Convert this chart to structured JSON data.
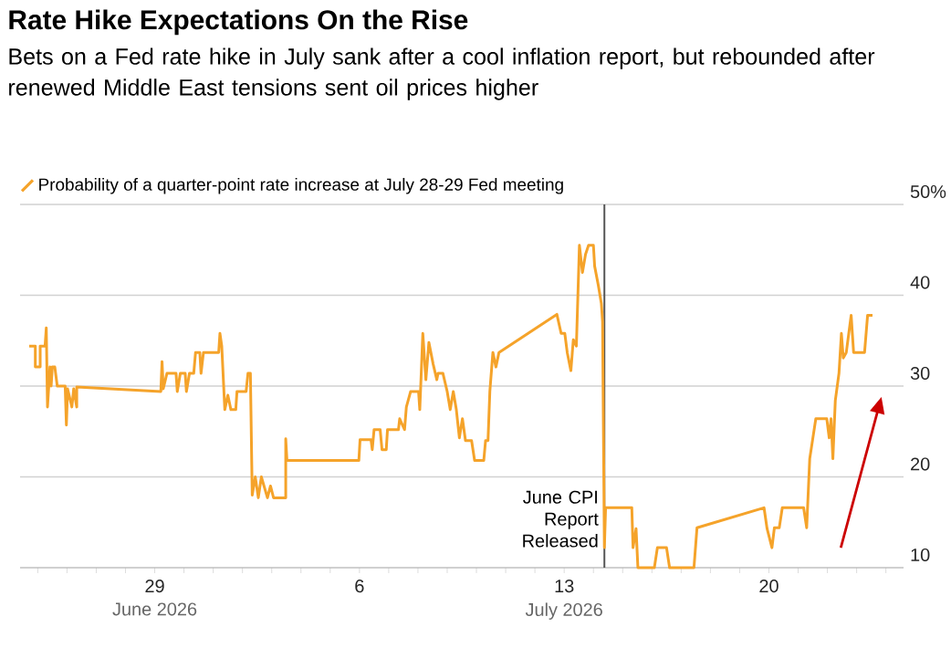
{
  "chart_data": {
    "type": "line",
    "title": "Rate Hike Expectations On the Rise",
    "subtitle": "Bets on a Fed rate hike in July sank after a cool inflation report, but rebounded after renewed Middle East tensions sent oil prices higher",
    "annotations": [
      "June 2026",
      "July 2026"
    ],
    "x": [
      "2026-06-24T17:00",
      "2026-06-24T22:00",
      "2026-06-24T22:00",
      "2026-06-25T02:00",
      "2026-06-25T02:00",
      "2026-06-25T06:00",
      "2026-06-25T07:00",
      "2026-06-25T08:00",
      "2026-06-25T10:00",
      "2026-06-25T11:00",
      "2026-06-25T12:00",
      "2026-06-25T14:00",
      "2026-06-25T16:00",
      "2026-06-25T22:30",
      "2026-06-25T23:30",
      "2026-06-26T00:30",
      "2026-06-26T04:00",
      "2026-06-26T05:30",
      "2026-06-26T08:00",
      "2026-06-26T08:00",
      "2026-06-29T05:00",
      "2026-06-29T06:00",
      "2026-06-29T07:00",
      "2026-06-29T10:00",
      "2026-06-29T17:30",
      "2026-06-29T18:30",
      "2026-06-29T21:00",
      "2026-06-30T01:00",
      "2026-06-30T02:00",
      "2026-06-30T04:30",
      "2026-06-30T08:00",
      "2026-06-30T09:30",
      "2026-06-30T13:00",
      "2026-06-30T14:00",
      "2026-06-30T16:00",
      "2026-07-01T04:30",
      "2026-07-01T05:30",
      "2026-07-01T07:00",
      "2026-07-01T09:30",
      "2026-07-01T12:00",
      "2026-07-01T14:30",
      "2026-07-01T18:30",
      "2026-07-01T19:30",
      "2026-07-02T03:00",
      "2026-07-02T04:30",
      "2026-07-02T06:30",
      "2026-07-02T08:00",
      "2026-07-02T10:30",
      "2026-07-02T13:00",
      "2026-07-02T15:30",
      "2026-07-02T20:30",
      "2026-07-02T23:00",
      "2026-07-03T01:30",
      "2026-07-03T11:30",
      "2026-07-03T11:30",
      "2026-07-03T12:30",
      "2026-07-05T23:30",
      "2026-07-06T00:30",
      "2026-07-06T09:30",
      "2026-07-06T10:30",
      "2026-07-06T12:00",
      "2026-07-06T17:00",
      "2026-07-06T18:30",
      "2026-07-06T22:00",
      "2026-07-06T23:00",
      "2026-07-07T08:00",
      "2026-07-07T09:00",
      "2026-07-07T13:00",
      "2026-07-07T14:30",
      "2026-07-07T18:00",
      "2026-07-08T00:30",
      "2026-07-08T01:30",
      "2026-07-08T04:00",
      "2026-07-08T06:30",
      "2026-07-08T09:00",
      "2026-07-08T12:30",
      "2026-07-08T15:30",
      "2026-07-08T16:30",
      "2026-07-08T20:30",
      "2026-07-09T00:00",
      "2026-07-09T02:30",
      "2026-07-09T05:00",
      "2026-07-09T07:30",
      "2026-07-09T10:00",
      "2026-07-09T12:30",
      "2026-07-09T15:00",
      "2026-07-09T20:00",
      "2026-07-09T22:30",
      "2026-07-10T06:00",
      "2026-07-10T07:30",
      "2026-07-10T09:30",
      "2026-07-10T11:00",
      "2026-07-10T13:30",
      "2026-07-10T16:00",
      "2026-07-10T18:30",
      "2026-07-12T18:00",
      "2026-07-12T21:30",
      "2026-07-13T00:30",
      "2026-07-13T02:30",
      "2026-07-13T05:30",
      "2026-07-13T07:30",
      "2026-07-13T10:00",
      "2026-07-13T12:30",
      "2026-07-13T15:00",
      "2026-07-13T17:30",
      "2026-07-13T20:00",
      "2026-07-14T00:00",
      "2026-07-14T01:00",
      "2026-07-14T04:00",
      "2026-07-14T06:30",
      "2026-07-14T07:30",
      "2026-07-14T09:00",
      "2026-07-14T10:00",
      "2026-07-15T07:30",
      "2026-07-15T08:30",
      "2026-07-15T11:00",
      "2026-07-15T12:30",
      "2026-07-16T02:00",
      "2026-07-16T04:30",
      "2026-07-16T12:00",
      "2026-07-16T14:30",
      "2026-07-17T10:30",
      "2026-07-17T13:00",
      "2026-07-19T20:00",
      "2026-07-19T22:30",
      "2026-07-20T02:30",
      "2026-07-20T04:30",
      "2026-07-20T08:30",
      "2026-07-20T11:00",
      "2026-07-21T04:30",
      "2026-07-21T07:00",
      "2026-07-21T09:30",
      "2026-07-21T14:30",
      "2026-07-21T23:30",
      "2026-07-22T01:30",
      "2026-07-22T03:00",
      "2026-07-22T04:30",
      "2026-07-22T06:30",
      "2026-07-22T09:30",
      "2026-07-22T11:30",
      "2026-07-22T13:00",
      "2026-07-22T15:30",
      "2026-07-22T19:30",
      "2026-07-22T21:30",
      "2026-07-23T06:30",
      "2026-07-23T09:00",
      "2026-07-23T13:00"
    ],
    "series": [
      {
        "name": "Probability of a quarter-point rate increase at July 28-29 Fed meeting",
        "color": "#f5a32a",
        "values": [
          34.4,
          34.4,
          32.1,
          32.1,
          34.4,
          34.4,
          36.4,
          27.7,
          32.1,
          30.0,
          32.1,
          32.1,
          30.0,
          30.0,
          25.7,
          29.7,
          27.7,
          29.7,
          27.7,
          29.9,
          29.4,
          32.7,
          29.7,
          31.4,
          31.4,
          29.4,
          31.4,
          31.4,
          29.4,
          31.4,
          31.4,
          33.7,
          33.7,
          31.4,
          33.7,
          33.7,
          35.8,
          34.4,
          27.4,
          29.0,
          27.4,
          27.4,
          29.4,
          29.4,
          31.4,
          31.4,
          18.0,
          20.0,
          17.7,
          20.0,
          17.7,
          19.0,
          17.7,
          17.7,
          24.2,
          21.8,
          21.8,
          24.1,
          24.1,
          23.0,
          25.2,
          25.2,
          23.0,
          23.0,
          25.2,
          25.2,
          26.4,
          25.2,
          27.7,
          29.4,
          29.4,
          27.4,
          35.8,
          30.7,
          34.8,
          32.4,
          30.7,
          31.4,
          31.4,
          29.4,
          27.4,
          29.4,
          27.4,
          24.3,
          26.4,
          24.0,
          24.0,
          21.8,
          21.8,
          24.0,
          24.0,
          29.4,
          33.7,
          32.1,
          33.7,
          37.9,
          35.8,
          35.8,
          33.7,
          31.7,
          35.1,
          34.4,
          45.5,
          42.5,
          44.5,
          45.5,
          45.5,
          43.2,
          41.1,
          39.1,
          37.1,
          12.2,
          16.6,
          16.6,
          12.2,
          14.3,
          10.0,
          10.0,
          12.2,
          12.2,
          10.0,
          10.0,
          14.4,
          16.6,
          14.3,
          12.2,
          14.4,
          14.4,
          16.6,
          16.6,
          14.4,
          22.0,
          26.4,
          26.4,
          24.3,
          26.4,
          22.0,
          28.4,
          31.4,
          35.8,
          33.1,
          33.7,
          37.8,
          33.7,
          33.7,
          37.8,
          37.8
        ]
      }
    ],
    "xlim": [
      "2026-06-24T09:30",
      "2026-07-24T14:30"
    ],
    "xticks": [
      {
        "value": "2026-06-25",
        "label": null
      },
      {
        "value": "2026-06-26",
        "label": null
      },
      {
        "value": "2026-06-27",
        "label": null
      },
      {
        "value": "2026-06-28",
        "label": null
      },
      {
        "value": "2026-06-29",
        "label": "29"
      },
      {
        "value": "2026-06-30",
        "label": null
      },
      {
        "value": "2026-07-01",
        "label": null
      },
      {
        "value": "2026-07-02",
        "label": null
      },
      {
        "value": "2026-07-03",
        "label": null
      },
      {
        "value": "2026-07-04",
        "label": null
      },
      {
        "value": "2026-07-05",
        "label": null
      },
      {
        "value": "2026-07-06",
        "label": "6"
      },
      {
        "value": "2026-07-07",
        "label": null
      },
      {
        "value": "2026-07-08",
        "label": null
      },
      {
        "value": "2026-07-09",
        "label": null
      },
      {
        "value": "2026-07-10",
        "label": null
      },
      {
        "value": "2026-07-11",
        "label": null
      },
      {
        "value": "2026-07-12",
        "label": null
      },
      {
        "value": "2026-07-13",
        "label": "13"
      },
      {
        "value": "2026-07-14",
        "label": null
      },
      {
        "value": "2026-07-15",
        "label": null
      },
      {
        "value": "2026-07-16",
        "label": null
      },
      {
        "value": "2026-07-17",
        "label": null
      },
      {
        "value": "2026-07-18",
        "label": null
      },
      {
        "value": "2026-07-19",
        "label": null
      },
      {
        "value": "2026-07-20",
        "label": "20"
      },
      {
        "value": "2026-07-21",
        "label": null
      },
      {
        "value": "2026-07-22",
        "label": null
      },
      {
        "value": "2026-07-23",
        "label": null
      },
      {
        "value": "2026-07-24",
        "label": null
      }
    ],
    "ylim": [
      10,
      50
    ],
    "yticks": [
      10,
      20,
      30,
      40,
      {
        "value": 50,
        "label": "50%"
      }
    ],
    "ref_lines": [
      {
        "axis": "x",
        "value": "2026-07-14T09:00",
        "label": "June CPI Report Released",
        "color": "#555555"
      }
    ],
    "grid": "y",
    "legend": "top left",
    "line_style": "solid",
    "marker": "none"
  }
}
